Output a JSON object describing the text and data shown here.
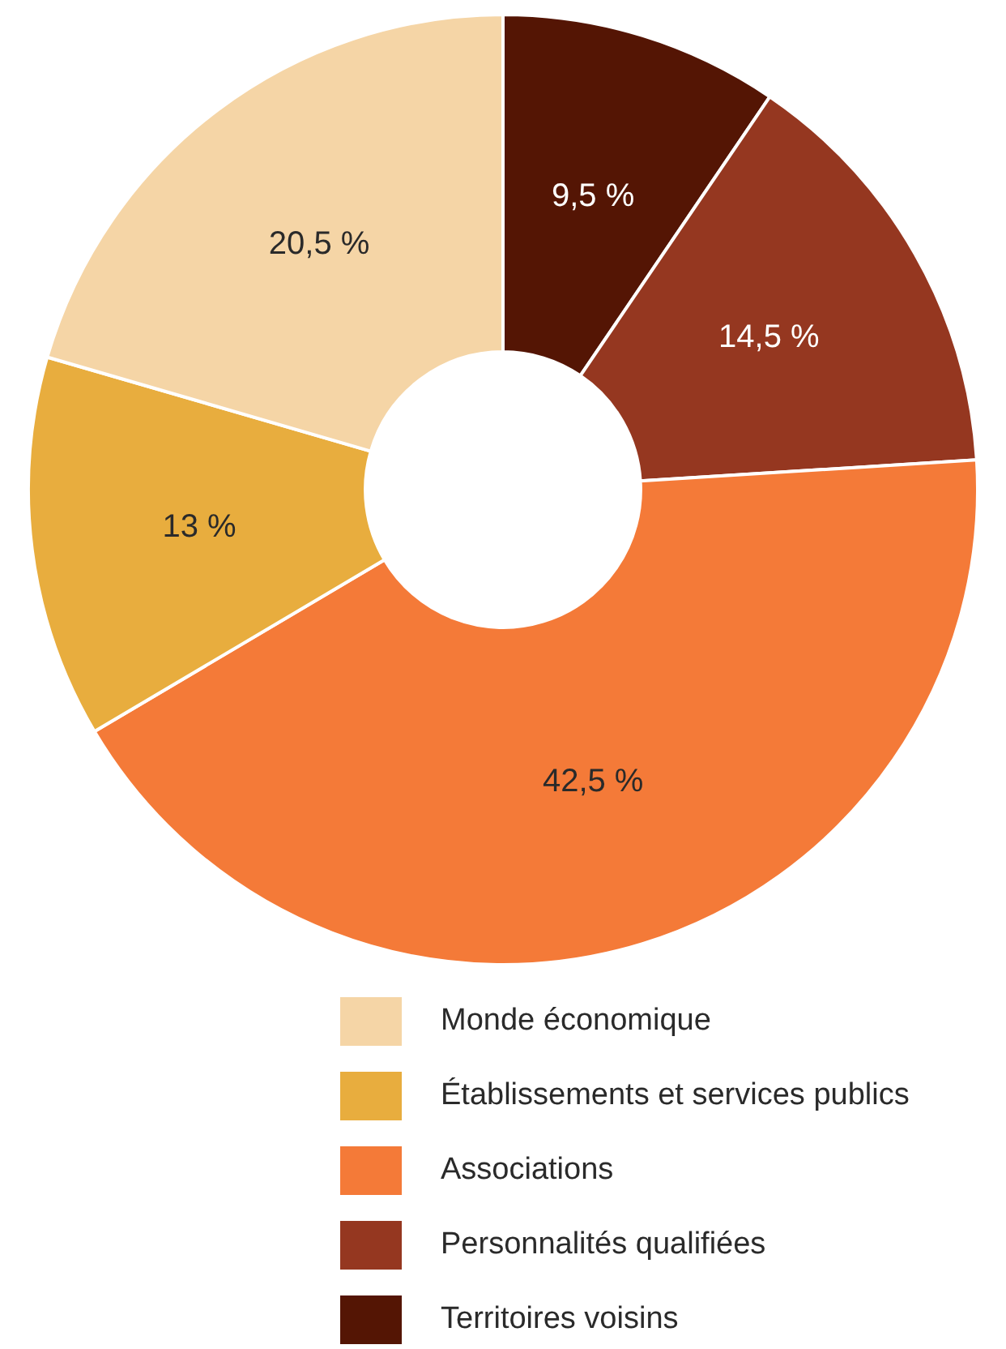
{
  "chart_data": {
    "type": "donut",
    "categories": [
      "Territoires voisins",
      "Personnalités qualifiées",
      "Associations",
      "Établissements et services publics",
      "Monde économique"
    ],
    "values": [
      9.5,
      14.5,
      42.5,
      13,
      20.5
    ],
    "colors": [
      "#541504",
      "#953720",
      "#f47a38",
      "#e8ad3e",
      "#f5d5a6"
    ],
    "value_labels": [
      "9,5 %",
      "14,5 %",
      "42,5 %",
      "13 %",
      "20,5 %"
    ],
    "legend": "bottom"
  }
}
